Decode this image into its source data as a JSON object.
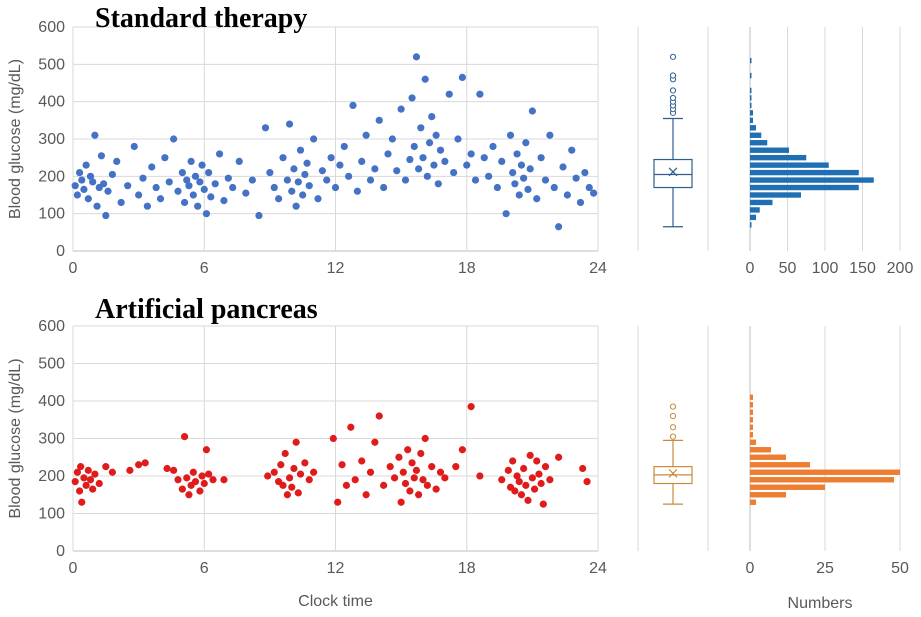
{
  "chart_data": [
    {
      "type": "scatter",
      "title": "Standard therapy",
      "ylabel": "Blood glucose (mg/dL)",
      "xlabel": "",
      "xlim": [
        0,
        24
      ],
      "ylim": [
        0,
        600
      ],
      "xticks": [
        0,
        6,
        12,
        18,
        24
      ],
      "yticks": [
        0,
        100,
        200,
        300,
        400,
        500,
        600
      ],
      "grid": true,
      "color": "#4472c4",
      "points": [
        [
          0.1,
          175
        ],
        [
          0.2,
          150
        ],
        [
          0.3,
          210
        ],
        [
          0.4,
          190
        ],
        [
          0.5,
          165
        ],
        [
          0.6,
          230
        ],
        [
          0.7,
          140
        ],
        [
          0.8,
          200
        ],
        [
          0.9,
          185
        ],
        [
          1.0,
          310
        ],
        [
          1.1,
          120
        ],
        [
          1.2,
          170
        ],
        [
          1.3,
          255
        ],
        [
          1.4,
          180
        ],
        [
          1.5,
          95
        ],
        [
          1.6,
          160
        ],
        [
          1.8,
          205
        ],
        [
          2.0,
          240
        ],
        [
          2.2,
          130
        ],
        [
          2.5,
          175
        ],
        [
          2.8,
          280
        ],
        [
          3.0,
          150
        ],
        [
          3.2,
          195
        ],
        [
          3.4,
          120
        ],
        [
          3.6,
          225
        ],
        [
          3.8,
          170
        ],
        [
          4.0,
          140
        ],
        [
          4.2,
          250
        ],
        [
          4.4,
          185
        ],
        [
          4.6,
          300
        ],
        [
          4.8,
          160
        ],
        [
          5.0,
          210
        ],
        [
          5.1,
          130
        ],
        [
          5.2,
          190
        ],
        [
          5.3,
          175
        ],
        [
          5.4,
          240
        ],
        [
          5.5,
          150
        ],
        [
          5.6,
          200
        ],
        [
          5.7,
          120
        ],
        [
          5.8,
          185
        ],
        [
          5.9,
          230
        ],
        [
          6.0,
          165
        ],
        [
          6.1,
          100
        ],
        [
          6.2,
          210
        ],
        [
          6.3,
          145
        ],
        [
          6.5,
          180
        ],
        [
          6.7,
          260
        ],
        [
          6.9,
          135
        ],
        [
          7.1,
          195
        ],
        [
          7.3,
          170
        ],
        [
          7.6,
          240
        ],
        [
          7.9,
          155
        ],
        [
          8.2,
          190
        ],
        [
          8.5,
          95
        ],
        [
          8.8,
          330
        ],
        [
          9.0,
          210
        ],
        [
          9.2,
          170
        ],
        [
          9.4,
          140
        ],
        [
          9.6,
          250
        ],
        [
          9.8,
          190
        ],
        [
          9.9,
          340
        ],
        [
          10.0,
          160
        ],
        [
          10.1,
          220
        ],
        [
          10.2,
          120
        ],
        [
          10.3,
          185
        ],
        [
          10.4,
          270
        ],
        [
          10.5,
          150
        ],
        [
          10.6,
          205
        ],
        [
          10.7,
          235
        ],
        [
          10.8,
          175
        ],
        [
          11.0,
          300
        ],
        [
          11.2,
          140
        ],
        [
          11.4,
          215
        ],
        [
          11.6,
          190
        ],
        [
          11.8,
          250
        ],
        [
          12.0,
          170
        ],
        [
          12.2,
          230
        ],
        [
          12.4,
          280
        ],
        [
          12.6,
          200
        ],
        [
          12.8,
          390
        ],
        [
          13.0,
          160
        ],
        [
          13.2,
          240
        ],
        [
          13.4,
          310
        ],
        [
          13.6,
          190
        ],
        [
          13.8,
          220
        ],
        [
          14.0,
          350
        ],
        [
          14.2,
          170
        ],
        [
          14.4,
          260
        ],
        [
          14.6,
          300
        ],
        [
          14.8,
          215
        ],
        [
          15.0,
          380
        ],
        [
          15.2,
          190
        ],
        [
          15.4,
          245
        ],
        [
          15.5,
          410
        ],
        [
          15.6,
          280
        ],
        [
          15.7,
          520
        ],
        [
          15.8,
          220
        ],
        [
          15.9,
          330
        ],
        [
          16.0,
          250
        ],
        [
          16.1,
          460
        ],
        [
          16.2,
          200
        ],
        [
          16.3,
          290
        ],
        [
          16.4,
          360
        ],
        [
          16.5,
          230
        ],
        [
          16.6,
          310
        ],
        [
          16.7,
          180
        ],
        [
          16.8,
          270
        ],
        [
          17.0,
          240
        ],
        [
          17.2,
          420
        ],
        [
          17.4,
          210
        ],
        [
          17.6,
          300
        ],
        [
          17.8,
          465
        ],
        [
          18.0,
          230
        ],
        [
          18.2,
          260
        ],
        [
          18.4,
          190
        ],
        [
          18.6,
          420
        ],
        [
          18.8,
          250
        ],
        [
          19.0,
          200
        ],
        [
          19.2,
          280
        ],
        [
          19.4,
          170
        ],
        [
          19.6,
          240
        ],
        [
          19.8,
          100
        ],
        [
          20.0,
          310
        ],
        [
          20.1,
          210
        ],
        [
          20.2,
          180
        ],
        [
          20.3,
          260
        ],
        [
          20.4,
          150
        ],
        [
          20.5,
          230
        ],
        [
          20.6,
          195
        ],
        [
          20.7,
          290
        ],
        [
          20.8,
          165
        ],
        [
          20.9,
          220
        ],
        [
          21.0,
          375
        ],
        [
          21.2,
          140
        ],
        [
          21.4,
          250
        ],
        [
          21.6,
          190
        ],
        [
          21.8,
          310
        ],
        [
          22.0,
          170
        ],
        [
          22.2,
          65
        ],
        [
          22.4,
          225
        ],
        [
          22.6,
          150
        ],
        [
          22.8,
          270
        ],
        [
          23.0,
          195
        ],
        [
          23.2,
          130
        ],
        [
          23.4,
          210
        ],
        [
          23.6,
          170
        ],
        [
          23.8,
          155
        ]
      ]
    },
    {
      "type": "box",
      "series": "Standard therapy",
      "ylim": [
        0,
        600
      ],
      "color": "#2e5e8e",
      "min": 65,
      "q1": 170,
      "median": 205,
      "q3": 245,
      "max": 355,
      "mean": 212,
      "outliers": [
        370,
        380,
        390,
        400,
        410,
        430,
        460,
        470,
        520
      ]
    },
    {
      "type": "bar",
      "orientation": "horizontal",
      "series": "Standard therapy",
      "xlabel": "",
      "xlim": [
        0,
        200
      ],
      "xticks": [
        0,
        50,
        100,
        150,
        200
      ],
      "ylim": [
        0,
        600
      ],
      "color": "#1f6fb2",
      "bin_width": 20,
      "bins": [
        [
          60,
          2
        ],
        [
          80,
          8
        ],
        [
          100,
          13
        ],
        [
          120,
          30
        ],
        [
          140,
          68
        ],
        [
          160,
          145
        ],
        [
          180,
          165
        ],
        [
          200,
          145
        ],
        [
          220,
          105
        ],
        [
          240,
          75
        ],
        [
          260,
          52
        ],
        [
          280,
          23
        ],
        [
          300,
          15
        ],
        [
          320,
          8
        ],
        [
          340,
          4
        ],
        [
          360,
          4
        ],
        [
          380,
          2
        ],
        [
          400,
          1
        ],
        [
          420,
          2
        ],
        [
          460,
          2
        ],
        [
          500,
          1
        ]
      ]
    },
    {
      "type": "scatter",
      "title": "Artificial pancreas",
      "ylabel": "Blood glucose (mg/dL)",
      "xlabel": "Clock time",
      "xlim": [
        0,
        24
      ],
      "ylim": [
        0,
        600
      ],
      "xticks": [
        0,
        6,
        12,
        18,
        24
      ],
      "yticks": [
        0,
        100,
        200,
        300,
        400,
        500,
        600
      ],
      "grid": true,
      "color": "#e01b1b",
      "points": [
        [
          0.1,
          185
        ],
        [
          0.2,
          210
        ],
        [
          0.3,
          160
        ],
        [
          0.35,
          225
        ],
        [
          0.4,
          130
        ],
        [
          0.5,
          195
        ],
        [
          0.6,
          175
        ],
        [
          0.7,
          215
        ],
        [
          0.8,
          190
        ],
        [
          0.9,
          165
        ],
        [
          1.0,
          205
        ],
        [
          1.2,
          180
        ],
        [
          1.5,
          225
        ],
        [
          1.8,
          210
        ],
        [
          2.6,
          215
        ],
        [
          3.0,
          230
        ],
        [
          3.3,
          235
        ],
        [
          4.3,
          220
        ],
        [
          4.6,
          215
        ],
        [
          4.8,
          190
        ],
        [
          5.0,
          165
        ],
        [
          5.1,
          305
        ],
        [
          5.2,
          195
        ],
        [
          5.3,
          150
        ],
        [
          5.4,
          175
        ],
        [
          5.5,
          210
        ],
        [
          5.6,
          185
        ],
        [
          5.8,
          160
        ],
        [
          5.9,
          200
        ],
        [
          6.0,
          180
        ],
        [
          6.1,
          270
        ],
        [
          6.2,
          205
        ],
        [
          6.4,
          190
        ],
        [
          6.9,
          190
        ],
        [
          8.9,
          200
        ],
        [
          9.2,
          210
        ],
        [
          9.4,
          185
        ],
        [
          9.5,
          230
        ],
        [
          9.6,
          175
        ],
        [
          9.7,
          260
        ],
        [
          9.8,
          150
        ],
        [
          9.9,
          195
        ],
        [
          10.0,
          170
        ],
        [
          10.1,
          220
        ],
        [
          10.2,
          290
        ],
        [
          10.3,
          155
        ],
        [
          10.4,
          205
        ],
        [
          10.6,
          235
        ],
        [
          10.8,
          190
        ],
        [
          11.0,
          210
        ],
        [
          11.9,
          300
        ],
        [
          12.1,
          130
        ],
        [
          12.3,
          230
        ],
        [
          12.5,
          175
        ],
        [
          12.7,
          330
        ],
        [
          12.9,
          190
        ],
        [
          13.2,
          240
        ],
        [
          13.4,
          150
        ],
        [
          13.6,
          210
        ],
        [
          13.8,
          290
        ],
        [
          14.0,
          360
        ],
        [
          14.2,
          175
        ],
        [
          14.5,
          225
        ],
        [
          14.7,
          195
        ],
        [
          14.9,
          250
        ],
        [
          15.0,
          130
        ],
        [
          15.1,
          210
        ],
        [
          15.2,
          180
        ],
        [
          15.3,
          270
        ],
        [
          15.4,
          160
        ],
        [
          15.5,
          235
        ],
        [
          15.6,
          195
        ],
        [
          15.7,
          215
        ],
        [
          15.8,
          150
        ],
        [
          15.9,
          260
        ],
        [
          16.0,
          190
        ],
        [
          16.1,
          300
        ],
        [
          16.2,
          175
        ],
        [
          16.4,
          225
        ],
        [
          16.6,
          165
        ],
        [
          16.8,
          210
        ],
        [
          17.0,
          195
        ],
        [
          17.5,
          225
        ],
        [
          17.8,
          270
        ],
        [
          18.2,
          385
        ],
        [
          18.6,
          200
        ],
        [
          19.6,
          190
        ],
        [
          19.9,
          215
        ],
        [
          20.0,
          170
        ],
        [
          20.1,
          240
        ],
        [
          20.2,
          160
        ],
        [
          20.3,
          200
        ],
        [
          20.4,
          185
        ],
        [
          20.5,
          150
        ],
        [
          20.6,
          220
        ],
        [
          20.7,
          175
        ],
        [
          20.8,
          135
        ],
        [
          20.9,
          255
        ],
        [
          21.0,
          195
        ],
        [
          21.1,
          165
        ],
        [
          21.2,
          240
        ],
        [
          21.3,
          205
        ],
        [
          21.4,
          180
        ],
        [
          21.5,
          125
        ],
        [
          21.6,
          225
        ],
        [
          21.8,
          190
        ],
        [
          22.2,
          250
        ],
        [
          23.3,
          220
        ],
        [
          23.5,
          185
        ]
      ]
    },
    {
      "type": "box",
      "series": "Artificial pancreas",
      "ylim": [
        0,
        600
      ],
      "color": "#c98a3c",
      "min": 125,
      "q1": 180,
      "median": 203,
      "q3": 225,
      "max": 295,
      "mean": 207,
      "outliers": [
        305,
        330,
        360,
        385
      ]
    },
    {
      "type": "bar",
      "orientation": "horizontal",
      "series": "Artificial pancreas",
      "xlabel": "Numbers",
      "xlim": [
        0,
        50
      ],
      "xticks": [
        0,
        25,
        50
      ],
      "ylim": [
        0,
        600
      ],
      "color": "#ed7d31",
      "bin_width": 20,
      "bins": [
        [
          120,
          2
        ],
        [
          140,
          12
        ],
        [
          160,
          25
        ],
        [
          180,
          48
        ],
        [
          200,
          50
        ],
        [
          220,
          20
        ],
        [
          240,
          12
        ],
        [
          260,
          7
        ],
        [
          280,
          2
        ],
        [
          300,
          1
        ],
        [
          320,
          1
        ],
        [
          340,
          1
        ],
        [
          360,
          1
        ],
        [
          380,
          1
        ],
        [
          400,
          1
        ]
      ]
    }
  ]
}
